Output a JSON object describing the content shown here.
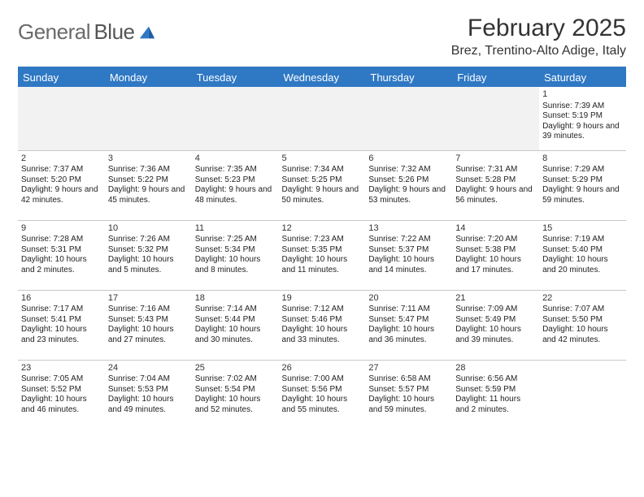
{
  "brand": {
    "name_a": "General",
    "name_b": "Blue"
  },
  "title": "February 2025",
  "location": "Brez, Trentino-Alto Adige, Italy",
  "colors": {
    "accent": "#2f78c4",
    "header_bg": "#2f78c4",
    "rule": "#2f78c4",
    "blank_bg": "#f2f2f2",
    "grid": "#c8c8c8"
  },
  "day_headers": [
    "Sunday",
    "Monday",
    "Tuesday",
    "Wednesday",
    "Thursday",
    "Friday",
    "Saturday"
  ],
  "weeks": [
    [
      {
        "blank": true
      },
      {
        "blank": true
      },
      {
        "blank": true
      },
      {
        "blank": true
      },
      {
        "blank": true
      },
      {
        "blank": true
      },
      {
        "n": "1",
        "sunrise": "Sunrise: 7:39 AM",
        "sunset": "Sunset: 5:19 PM",
        "daylight": "Daylight: 9 hours and 39 minutes."
      }
    ],
    [
      {
        "n": "2",
        "sunrise": "Sunrise: 7:37 AM",
        "sunset": "Sunset: 5:20 PM",
        "daylight": "Daylight: 9 hours and 42 minutes."
      },
      {
        "n": "3",
        "sunrise": "Sunrise: 7:36 AM",
        "sunset": "Sunset: 5:22 PM",
        "daylight": "Daylight: 9 hours and 45 minutes."
      },
      {
        "n": "4",
        "sunrise": "Sunrise: 7:35 AM",
        "sunset": "Sunset: 5:23 PM",
        "daylight": "Daylight: 9 hours and 48 minutes."
      },
      {
        "n": "5",
        "sunrise": "Sunrise: 7:34 AM",
        "sunset": "Sunset: 5:25 PM",
        "daylight": "Daylight: 9 hours and 50 minutes."
      },
      {
        "n": "6",
        "sunrise": "Sunrise: 7:32 AM",
        "sunset": "Sunset: 5:26 PM",
        "daylight": "Daylight: 9 hours and 53 minutes."
      },
      {
        "n": "7",
        "sunrise": "Sunrise: 7:31 AM",
        "sunset": "Sunset: 5:28 PM",
        "daylight": "Daylight: 9 hours and 56 minutes."
      },
      {
        "n": "8",
        "sunrise": "Sunrise: 7:29 AM",
        "sunset": "Sunset: 5:29 PM",
        "daylight": "Daylight: 9 hours and 59 minutes."
      }
    ],
    [
      {
        "n": "9",
        "sunrise": "Sunrise: 7:28 AM",
        "sunset": "Sunset: 5:31 PM",
        "daylight": "Daylight: 10 hours and 2 minutes."
      },
      {
        "n": "10",
        "sunrise": "Sunrise: 7:26 AM",
        "sunset": "Sunset: 5:32 PM",
        "daylight": "Daylight: 10 hours and 5 minutes."
      },
      {
        "n": "11",
        "sunrise": "Sunrise: 7:25 AM",
        "sunset": "Sunset: 5:34 PM",
        "daylight": "Daylight: 10 hours and 8 minutes."
      },
      {
        "n": "12",
        "sunrise": "Sunrise: 7:23 AM",
        "sunset": "Sunset: 5:35 PM",
        "daylight": "Daylight: 10 hours and 11 minutes."
      },
      {
        "n": "13",
        "sunrise": "Sunrise: 7:22 AM",
        "sunset": "Sunset: 5:37 PM",
        "daylight": "Daylight: 10 hours and 14 minutes."
      },
      {
        "n": "14",
        "sunrise": "Sunrise: 7:20 AM",
        "sunset": "Sunset: 5:38 PM",
        "daylight": "Daylight: 10 hours and 17 minutes."
      },
      {
        "n": "15",
        "sunrise": "Sunrise: 7:19 AM",
        "sunset": "Sunset: 5:40 PM",
        "daylight": "Daylight: 10 hours and 20 minutes."
      }
    ],
    [
      {
        "n": "16",
        "sunrise": "Sunrise: 7:17 AM",
        "sunset": "Sunset: 5:41 PM",
        "daylight": "Daylight: 10 hours and 23 minutes."
      },
      {
        "n": "17",
        "sunrise": "Sunrise: 7:16 AM",
        "sunset": "Sunset: 5:43 PM",
        "daylight": "Daylight: 10 hours and 27 minutes."
      },
      {
        "n": "18",
        "sunrise": "Sunrise: 7:14 AM",
        "sunset": "Sunset: 5:44 PM",
        "daylight": "Daylight: 10 hours and 30 minutes."
      },
      {
        "n": "19",
        "sunrise": "Sunrise: 7:12 AM",
        "sunset": "Sunset: 5:46 PM",
        "daylight": "Daylight: 10 hours and 33 minutes."
      },
      {
        "n": "20",
        "sunrise": "Sunrise: 7:11 AM",
        "sunset": "Sunset: 5:47 PM",
        "daylight": "Daylight: 10 hours and 36 minutes."
      },
      {
        "n": "21",
        "sunrise": "Sunrise: 7:09 AM",
        "sunset": "Sunset: 5:49 PM",
        "daylight": "Daylight: 10 hours and 39 minutes."
      },
      {
        "n": "22",
        "sunrise": "Sunrise: 7:07 AM",
        "sunset": "Sunset: 5:50 PM",
        "daylight": "Daylight: 10 hours and 42 minutes."
      }
    ],
    [
      {
        "n": "23",
        "sunrise": "Sunrise: 7:05 AM",
        "sunset": "Sunset: 5:52 PM",
        "daylight": "Daylight: 10 hours and 46 minutes."
      },
      {
        "n": "24",
        "sunrise": "Sunrise: 7:04 AM",
        "sunset": "Sunset: 5:53 PM",
        "daylight": "Daylight: 10 hours and 49 minutes."
      },
      {
        "n": "25",
        "sunrise": "Sunrise: 7:02 AM",
        "sunset": "Sunset: 5:54 PM",
        "daylight": "Daylight: 10 hours and 52 minutes."
      },
      {
        "n": "26",
        "sunrise": "Sunrise: 7:00 AM",
        "sunset": "Sunset: 5:56 PM",
        "daylight": "Daylight: 10 hours and 55 minutes."
      },
      {
        "n": "27",
        "sunrise": "Sunrise: 6:58 AM",
        "sunset": "Sunset: 5:57 PM",
        "daylight": "Daylight: 10 hours and 59 minutes."
      },
      {
        "n": "28",
        "sunrise": "Sunrise: 6:56 AM",
        "sunset": "Sunset: 5:59 PM",
        "daylight": "Daylight: 11 hours and 2 minutes."
      },
      {
        "blank": true,
        "white": true
      }
    ]
  ]
}
